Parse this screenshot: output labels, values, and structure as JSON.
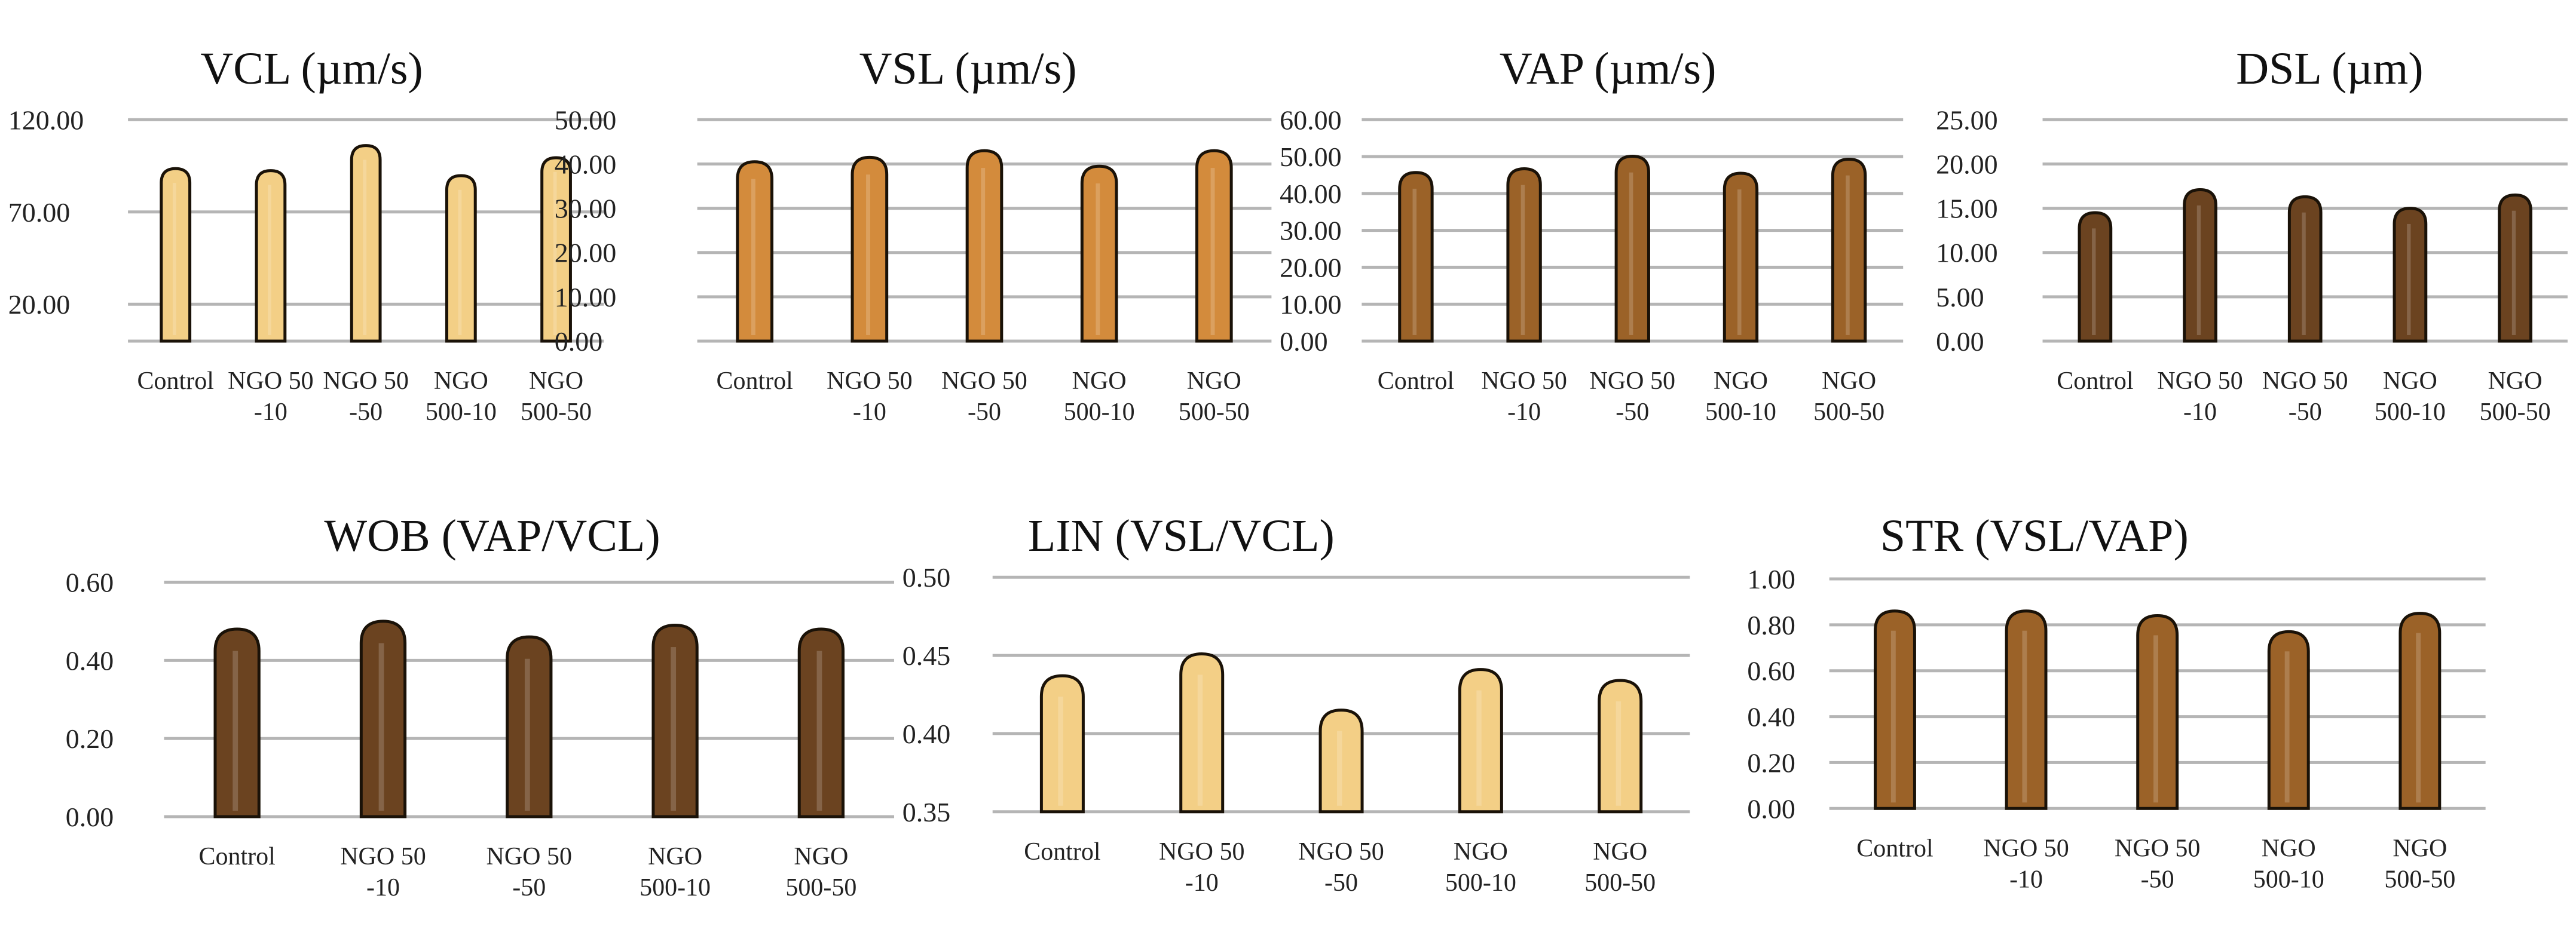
{
  "chart_data": [
    {
      "type": "bar",
      "title": "VCL (µm/s)",
      "categories": [
        "Control",
        "NGO 50|-10",
        "NGO 50|-50",
        "NGO|500-10",
        "NGO|500-50"
      ],
      "values": [
        93.5,
        92.4,
        106.0,
        89.7,
        99.4
      ],
      "ylim": [
        0,
        120
      ],
      "yticks": [
        "20.00",
        "70.00",
        "120.00"
      ],
      "ytick_values": [
        20,
        70,
        120
      ],
      "grid": true,
      "color": "#f3cf86"
    },
    {
      "type": "bar",
      "title": "VSL (µm/s)",
      "categories": [
        "Control",
        "NGO 50|-10",
        "NGO 50|-50",
        "NGO|500-10",
        "NGO|500-50"
      ],
      "values": [
        40.5,
        41.5,
        43.0,
        39.5,
        43.0
      ],
      "ylim": [
        0,
        50
      ],
      "yticks": [
        "0.00",
        "10.00",
        "20.00",
        "30.00",
        "40.00",
        "50.00"
      ],
      "ytick_values": [
        0,
        10,
        20,
        30,
        40,
        50
      ],
      "grid": true,
      "color": "#d38b3c"
    },
    {
      "type": "bar",
      "title": "VAP (µm/s)",
      "categories": [
        "Control",
        "NGO 50|-10",
        "NGO 50|-50",
        "NGO|500-10",
        "NGO|500-50"
      ],
      "values": [
        45.7,
        46.7,
        50.1,
        45.5,
        49.3
      ],
      "ylim": [
        0,
        60
      ],
      "yticks": [
        "0.00",
        "10.00",
        "20.00",
        "30.00",
        "40.00",
        "50.00",
        "60.00"
      ],
      "ytick_values": [
        0,
        10,
        20,
        30,
        40,
        50,
        60
      ],
      "grid": true,
      "color": "#9b6228"
    },
    {
      "type": "bar",
      "title": "DSL (µm)",
      "categories": [
        "Control",
        "NGO 50|-10",
        "NGO 50|-50",
        "NGO|500-10",
        "NGO|500-50"
      ],
      "values": [
        14.5,
        17.1,
        16.3,
        15.0,
        16.5
      ],
      "ylim": [
        0,
        25
      ],
      "yticks": [
        "0.00",
        "5.00",
        "10.00",
        "15.00",
        "20.00",
        "25.00"
      ],
      "ytick_values": [
        0,
        5,
        10,
        15,
        20,
        25
      ],
      "grid": true,
      "color": "#6b4320"
    },
    {
      "type": "bar",
      "title": "WOB (VAP/VCL)",
      "categories": [
        "Control",
        "NGO 50|-10",
        "NGO 50|-50",
        "NGO|500-10",
        "NGO|500-50"
      ],
      "values": [
        0.48,
        0.5,
        0.46,
        0.49,
        0.48
      ],
      "ylim": [
        0,
        0.6
      ],
      "yticks": [
        "0.00",
        "0.20",
        "0.40",
        "0.60"
      ],
      "ytick_values": [
        0,
        0.2,
        0.4,
        0.6
      ],
      "grid": true,
      "color": "#6b4320"
    },
    {
      "type": "bar",
      "title": "LIN (VSL/VCL)",
      "categories": [
        "Control",
        "NGO 50|-10",
        "NGO 50|-50",
        "NGO|500-10",
        "NGO|500-50"
      ],
      "values": [
        0.437,
        0.451,
        0.415,
        0.441,
        0.434
      ],
      "ylim": [
        0.35,
        0.5
      ],
      "yticks": [
        "0.35",
        "0.40",
        "0.45",
        "0.50"
      ],
      "ytick_values": [
        0.35,
        0.4,
        0.45,
        0.5
      ],
      "grid": true,
      "color": "#f3cf86"
    },
    {
      "type": "bar",
      "title": "STR (VSL/VAP)",
      "categories": [
        "Control",
        "NGO 50|-10",
        "NGO 50|-50",
        "NGO|500-10",
        "NGO|500-50"
      ],
      "values": [
        0.86,
        0.86,
        0.84,
        0.77,
        0.85
      ],
      "ylim": [
        0,
        1.0
      ],
      "yticks": [
        "0.00",
        "0.20",
        "0.40",
        "0.60",
        "0.80",
        "1.00"
      ],
      "ytick_values": [
        0,
        0.2,
        0.4,
        0.6,
        0.8,
        1.0
      ],
      "grid": true,
      "color": "#9b6228"
    }
  ]
}
